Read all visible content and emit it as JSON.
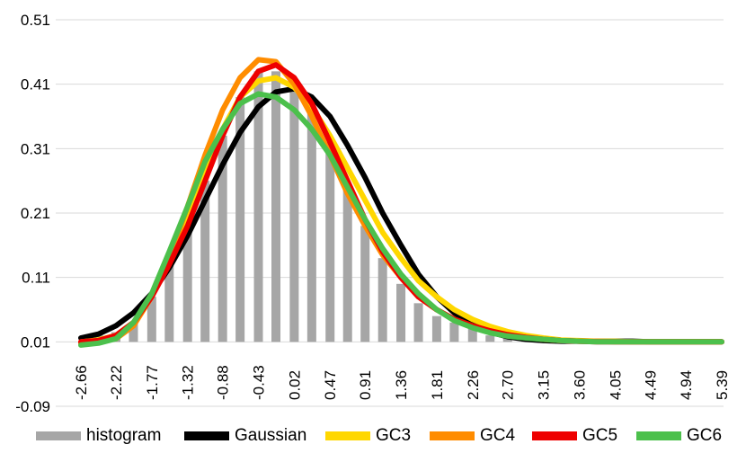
{
  "chart_data": {
    "type": "line",
    "title": "",
    "xlabel": "",
    "ylabel": "",
    "ylim": [
      -0.09,
      0.51
    ],
    "yticks": [
      "-0.09",
      "0.01",
      "0.11",
      "0.21",
      "0.31",
      "0.41",
      "0.51"
    ],
    "xticks": [
      "-2.66",
      "-2.22",
      "-1.77",
      "-1.32",
      "-0.88",
      "-0.43",
      "0.02",
      "0.47",
      "0.91",
      "1.36",
      "1.81",
      "2.26",
      "2.70",
      "3.15",
      "3.60",
      "4.05",
      "4.49",
      "4.94",
      "5.39"
    ],
    "x": [
      -2.66,
      -2.44,
      -2.22,
      -2.0,
      -1.77,
      -1.55,
      -1.32,
      -1.1,
      -0.88,
      -0.66,
      -0.43,
      -0.21,
      0.02,
      0.24,
      0.47,
      0.69,
      0.91,
      1.13,
      1.36,
      1.58,
      1.81,
      2.03,
      2.26,
      2.48,
      2.7,
      2.93,
      3.15,
      3.37,
      3.6,
      3.82,
      4.05,
      4.27,
      4.49,
      4.71,
      4.94,
      5.16,
      5.39
    ],
    "grid": true,
    "legend_position": "bottom",
    "series": [
      {
        "name": "histogram",
        "kind": "bar",
        "color": "#a6a6a6",
        "values": [
          0.0,
          0.01,
          0.015,
          0.03,
          0.07,
          0.12,
          0.18,
          0.25,
          0.32,
          0.38,
          0.42,
          0.42,
          0.4,
          0.36,
          0.31,
          0.24,
          0.18,
          0.13,
          0.09,
          0.06,
          0.04,
          0.03,
          0.02,
          0.01,
          0.01,
          0.005,
          0.0,
          0.0,
          0.0,
          0.0,
          0.0,
          0.0,
          0.0,
          0.0,
          0.0,
          0.0,
          0.0
        ]
      },
      {
        "name": "Gaussian",
        "kind": "line",
        "color": "#000000",
        "values": [
          0.016,
          0.022,
          0.035,
          0.055,
          0.085,
          0.125,
          0.175,
          0.23,
          0.285,
          0.335,
          0.375,
          0.398,
          0.403,
          0.39,
          0.36,
          0.315,
          0.265,
          0.21,
          0.16,
          0.115,
          0.08,
          0.055,
          0.037,
          0.025,
          0.018,
          0.014,
          0.012,
          0.011,
          0.011,
          0.011,
          0.011,
          0.011,
          0.01,
          0.01,
          0.01,
          0.01,
          0.01
        ]
      },
      {
        "name": "GC3",
        "kind": "line",
        "color": "#ffd700",
        "values": [
          0.01,
          0.013,
          0.02,
          0.04,
          0.08,
          0.14,
          0.21,
          0.28,
          0.34,
          0.39,
          0.415,
          0.42,
          0.405,
          0.375,
          0.33,
          0.28,
          0.23,
          0.18,
          0.14,
          0.105,
          0.08,
          0.06,
          0.045,
          0.034,
          0.026,
          0.02,
          0.016,
          0.013,
          0.012,
          0.011,
          0.011,
          0.01,
          0.01,
          0.01,
          0.01,
          0.01,
          0.01
        ]
      },
      {
        "name": "GC4",
        "kind": "line",
        "color": "#ff8c00",
        "values": [
          0.008,
          0.01,
          0.015,
          0.035,
          0.08,
          0.14,
          0.22,
          0.3,
          0.37,
          0.42,
          0.448,
          0.445,
          0.41,
          0.36,
          0.3,
          0.24,
          0.19,
          0.145,
          0.11,
          0.08,
          0.06,
          0.045,
          0.035,
          0.027,
          0.021,
          0.017,
          0.014,
          0.012,
          0.011,
          0.011,
          0.01,
          0.01,
          0.01,
          0.01,
          0.01,
          0.01,
          0.01
        ]
      },
      {
        "name": "GC5",
        "kind": "line",
        "color": "#ee0000",
        "values": [
          0.01,
          0.012,
          0.02,
          0.04,
          0.08,
          0.13,
          0.19,
          0.26,
          0.33,
          0.39,
          0.43,
          0.44,
          0.42,
          0.38,
          0.32,
          0.26,
          0.2,
          0.15,
          0.11,
          0.08,
          0.06,
          0.045,
          0.035,
          0.027,
          0.021,
          0.017,
          0.014,
          0.012,
          0.011,
          0.01,
          0.01,
          0.01,
          0.01,
          0.01,
          0.01,
          0.01,
          0.01
        ]
      },
      {
        "name": "GC6",
        "kind": "line",
        "color": "#4cc04c",
        "values": [
          0.005,
          0.008,
          0.015,
          0.04,
          0.085,
          0.15,
          0.22,
          0.29,
          0.34,
          0.38,
          0.395,
          0.39,
          0.37,
          0.34,
          0.3,
          0.25,
          0.2,
          0.155,
          0.115,
          0.085,
          0.06,
          0.043,
          0.032,
          0.024,
          0.019,
          0.016,
          0.014,
          0.012,
          0.011,
          0.01,
          0.01,
          0.01,
          0.01,
          0.01,
          0.01,
          0.01,
          0.01
        ]
      }
    ]
  }
}
